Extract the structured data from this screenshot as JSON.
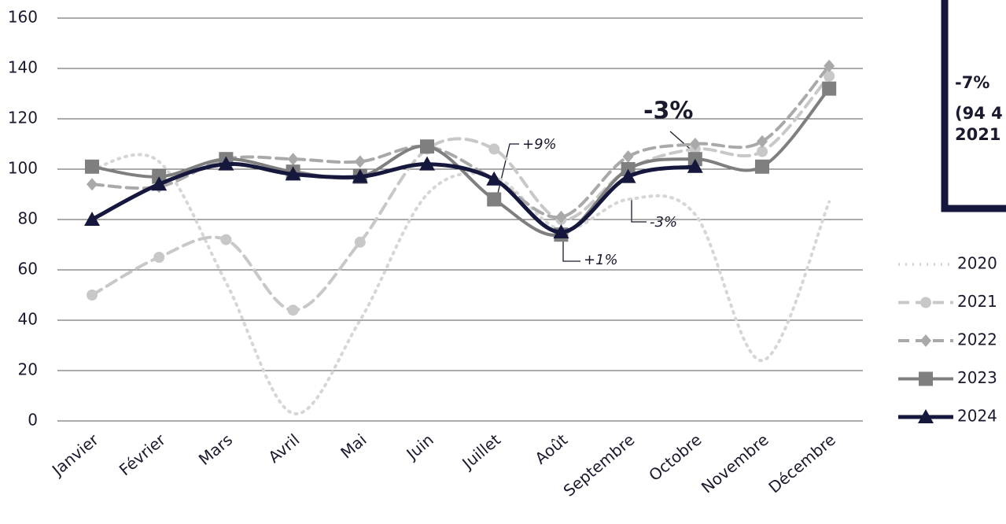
{
  "chart_data": {
    "type": "line",
    "categories": [
      "Janvier",
      "Février",
      "Mars",
      "Avril",
      "Mai",
      "Juin",
      "Juillet",
      "Août",
      "Septembre",
      "Octobre",
      "Novembre",
      "Décembre"
    ],
    "series": [
      {
        "name": "2020",
        "color": "#d6d6d6",
        "dash": "dotted",
        "marker": "none",
        "width": 4,
        "values": [
          100,
          103,
          55,
          3,
          40,
          90,
          97,
          76,
          88,
          82,
          24,
          87
        ]
      },
      {
        "name": "2021",
        "color": "#c8c8c8",
        "dash": "dashed",
        "marker": "circle",
        "width": 4,
        "values": [
          50,
          65,
          72,
          44,
          71,
          108,
          108,
          80,
          100,
          108,
          107,
          137
        ]
      },
      {
        "name": "2022",
        "color": "#a9a9a9",
        "dash": "dashed",
        "marker": "diamond",
        "width": 4,
        "values": [
          94,
          93,
          104,
          104,
          103,
          109,
          96,
          81,
          105,
          110,
          111,
          141
        ]
      },
      {
        "name": "2023",
        "color": "#7f7f7f",
        "dash": "solid",
        "marker": "square",
        "width": 4,
        "values": [
          101,
          97,
          104,
          99,
          97,
          109,
          88,
          74,
          100,
          104,
          101,
          132
        ]
      },
      {
        "name": "2024",
        "color": "#15173d",
        "dash": "solid",
        "marker": "triangle",
        "width": 5,
        "values": [
          80,
          94,
          102,
          98,
          97,
          102,
          96,
          75,
          97,
          101,
          null,
          null
        ]
      }
    ],
    "ylim": [
      0,
      160
    ],
    "yticks": [
      0,
      20,
      40,
      60,
      80,
      100,
      120,
      140,
      160
    ],
    "grid": true,
    "annotations": [
      "+9%",
      "+1%",
      "-3%",
      "-3%"
    ],
    "side_box": [
      "-7%",
      "(94 4",
      "2021"
    ]
  }
}
